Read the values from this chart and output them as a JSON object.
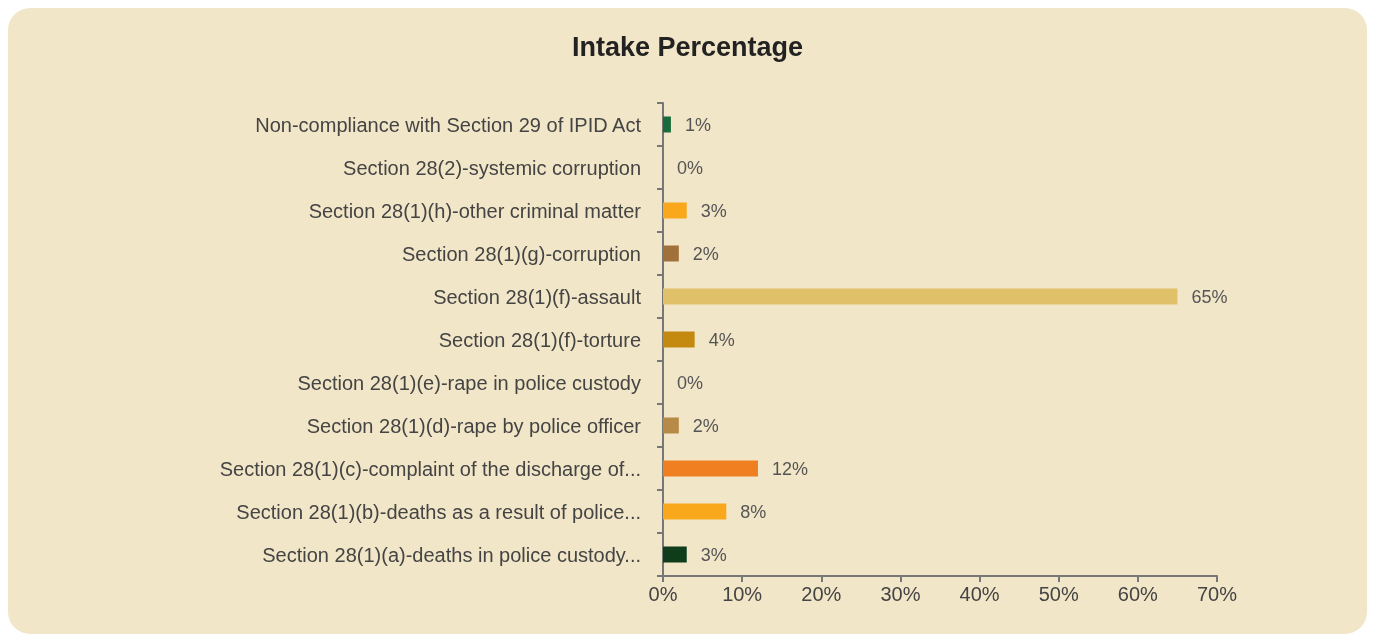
{
  "chart_data": {
    "type": "bar",
    "orientation": "horizontal",
    "title": "Intake Percentage",
    "categories": [
      "Non-compliance with Section 29 of IPID Act",
      "Section 28(2)-systemic corruption",
      "Section 28(1)(h)-other criminal matter",
      "Section 28(1)(g)-corruption",
      "Section 28(1)(f)-assault",
      "Section 28(1)(f)-torture",
      "Section 28(1)(e)-rape in police custody",
      "Section 28(1)(d)-rape by police officer",
      "Section 28(1)(c)-complaint of the discharge of...",
      "Section 28(1)(b)-deaths as a result of police...",
      "Section 28(1)(a)-deaths in police custody..."
    ],
    "values": [
      1,
      0,
      3,
      2,
      65,
      4,
      0,
      2,
      12,
      8,
      3
    ],
    "value_labels": [
      "1%",
      "0%",
      "3%",
      "2%",
      "65%",
      "4%",
      "0%",
      "2%",
      "12%",
      "8%",
      "3%"
    ],
    "colors": [
      "#1a6b3c",
      "#7a1f0f",
      "#f9a81b",
      "#a0723a",
      "#e0c068",
      "#c48a10",
      "#dcb878",
      "#b88a48",
      "#f07f22",
      "#f9a81b",
      "#0f3d1c"
    ],
    "xlim": [
      0,
      70
    ],
    "xticks": [
      {
        "value": 0,
        "label": "0%"
      },
      {
        "value": 10,
        "label": "10%"
      },
      {
        "value": 20,
        "label": "20%"
      },
      {
        "value": 30,
        "label": "30%"
      },
      {
        "value": 40,
        "label": "40%"
      },
      {
        "value": 50,
        "label": "50%"
      },
      {
        "value": 60,
        "label": "60%"
      },
      {
        "value": 70,
        "label": "70%"
      }
    ]
  }
}
